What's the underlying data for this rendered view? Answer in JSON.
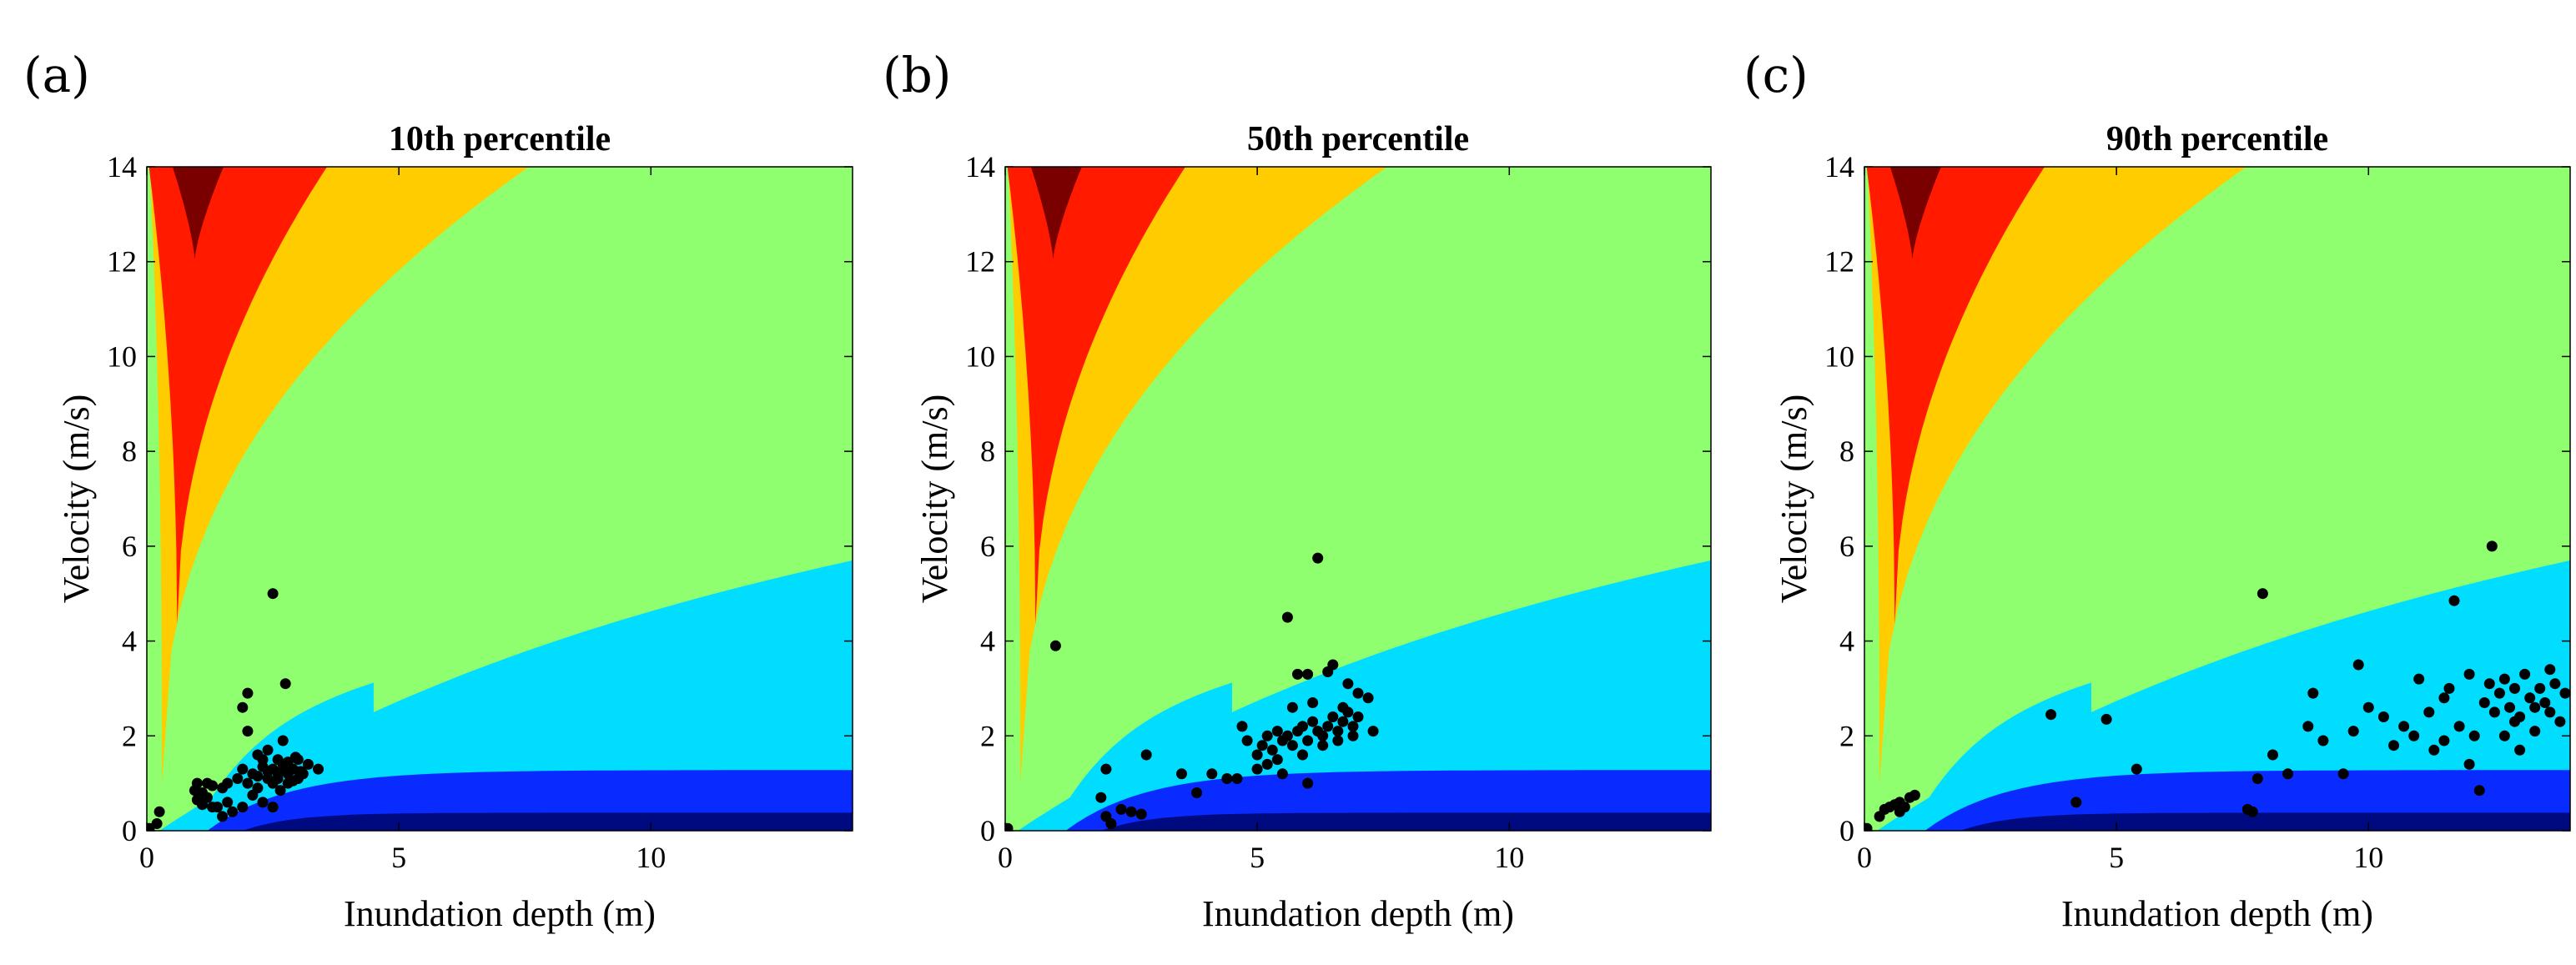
{
  "figure": {
    "panel_labels": [
      "(a)",
      "(b)",
      "(c)"
    ]
  },
  "zone_colors": {
    "dark_red": "#7A0000",
    "red": "#FF1A00",
    "orange": "#FFCC00",
    "green": "#8FFF6F",
    "light_blue": "#00DDFF",
    "blue": "#0A2BFF",
    "navy": "#000A80"
  },
  "chart_data": [
    {
      "type": "scatter",
      "panel": "(a)",
      "title": "10th percentile",
      "xlabel": "Inundation depth (m)",
      "ylabel": "Velocity (m/s)",
      "xlim": [
        0,
        14
      ],
      "ylim": [
        0,
        14
      ],
      "xticks": [
        0,
        5,
        10
      ],
      "yticks": [
        0,
        2,
        4,
        6,
        8,
        10,
        12,
        14
      ],
      "background": "hazard zone contours (depth-velocity)",
      "points": [
        [
          0.05,
          0.05
        ],
        [
          0.25,
          0.4
        ],
        [
          0.2,
          0.15
        ],
        [
          2.5,
          5.0
        ],
        [
          1.0,
          1.0
        ],
        [
          1.1,
          0.8
        ],
        [
          1.2,
          0.7
        ],
        [
          1.3,
          0.95
        ],
        [
          1.4,
          0.5
        ],
        [
          1.5,
          0.9
        ],
        [
          1.6,
          0.6
        ],
        [
          1.7,
          0.4
        ],
        [
          1.5,
          0.3
        ],
        [
          1.3,
          0.5
        ],
        [
          1.2,
          1.0
        ],
        [
          1.1,
          0.55
        ],
        [
          1.0,
          0.65
        ],
        [
          0.95,
          0.85
        ],
        [
          1.8,
          1.1
        ],
        [
          1.9,
          1.3
        ],
        [
          2.0,
          1.0
        ],
        [
          2.1,
          1.2
        ],
        [
          2.2,
          0.9
        ],
        [
          2.3,
          1.5
        ],
        [
          2.4,
          1.1
        ],
        [
          2.5,
          1.3
        ],
        [
          2.6,
          1.2
        ],
        [
          2.7,
          1.4
        ],
        [
          2.8,
          1.0
        ],
        [
          2.9,
          1.3
        ],
        [
          3.0,
          1.5
        ],
        [
          3.1,
          1.2
        ],
        [
          3.2,
          1.4
        ],
        [
          3.4,
          1.3
        ],
        [
          2.0,
          2.9
        ],
        [
          1.9,
          2.6
        ],
        [
          2.0,
          2.1
        ],
        [
          2.75,
          3.1
        ],
        [
          2.7,
          1.9
        ],
        [
          2.4,
          1.7
        ],
        [
          2.2,
          1.6
        ],
        [
          2.5,
          1.0
        ],
        [
          2.6,
          1.1
        ],
        [
          2.8,
          1.2
        ],
        [
          2.9,
          1.05
        ],
        [
          3.0,
          1.1
        ],
        [
          2.3,
          0.6
        ],
        [
          2.1,
          0.75
        ],
        [
          2.5,
          0.5
        ],
        [
          1.9,
          0.5
        ],
        [
          2.6,
          1.5
        ],
        [
          2.7,
          1.3
        ],
        [
          2.3,
          1.35
        ],
        [
          2.4,
          1.25
        ],
        [
          2.2,
          1.15
        ],
        [
          2.8,
          1.45
        ],
        [
          2.95,
          1.55
        ],
        [
          3.05,
          1.25
        ],
        [
          2.65,
          0.85
        ],
        [
          1.6,
          1.0
        ]
      ]
    },
    {
      "type": "scatter",
      "panel": "(b)",
      "title": "50th percentile",
      "xlabel": "Inundation depth (m)",
      "ylabel": "Velocity (m/s)",
      "xlim": [
        0,
        14
      ],
      "ylim": [
        0,
        14
      ],
      "xticks": [
        0,
        5,
        10
      ],
      "yticks": [
        0,
        2,
        4,
        6,
        8,
        10,
        12,
        14
      ],
      "background": "hazard zone contours (depth-velocity)",
      "points": [
        [
          0.05,
          0.05
        ],
        [
          1.0,
          3.9
        ],
        [
          2.0,
          1.3
        ],
        [
          1.9,
          0.7
        ],
        [
          2.0,
          0.3
        ],
        [
          2.1,
          0.15
        ],
        [
          2.5,
          0.4
        ],
        [
          2.8,
          1.6
        ],
        [
          2.3,
          0.45
        ],
        [
          2.7,
          0.35
        ],
        [
          3.5,
          1.2
        ],
        [
          3.8,
          0.8
        ],
        [
          4.1,
          1.2
        ],
        [
          4.4,
          1.1
        ],
        [
          4.6,
          1.1
        ],
        [
          4.7,
          2.2
        ],
        [
          4.8,
          1.9
        ],
        [
          5.0,
          1.3
        ],
        [
          5.0,
          1.6
        ],
        [
          5.1,
          1.8
        ],
        [
          5.2,
          1.4
        ],
        [
          5.3,
          1.7
        ],
        [
          5.4,
          1.5
        ],
        [
          5.5,
          1.2
        ],
        [
          5.5,
          1.9
        ],
        [
          5.6,
          2.0
        ],
        [
          5.7,
          1.8
        ],
        [
          5.8,
          2.1
        ],
        [
          5.9,
          2.2
        ],
        [
          6.0,
          1.9
        ],
        [
          6.1,
          2.3
        ],
        [
          6.2,
          2.1
        ],
        [
          6.3,
          2.0
        ],
        [
          6.4,
          2.2
        ],
        [
          6.5,
          2.4
        ],
        [
          6.6,
          2.1
        ],
        [
          6.7,
          2.3
        ],
        [
          6.8,
          2.5
        ],
        [
          6.9,
          2.2
        ],
        [
          7.0,
          2.4
        ],
        [
          7.2,
          2.8
        ],
        [
          7.3,
          2.1
        ],
        [
          6.2,
          5.75
        ],
        [
          5.6,
          4.5
        ],
        [
          5.8,
          3.3
        ],
        [
          6.0,
          3.3
        ],
        [
          6.5,
          3.5
        ],
        [
          6.4,
          3.35
        ],
        [
          6.8,
          3.1
        ],
        [
          6.0,
          1.0
        ],
        [
          5.2,
          2.0
        ],
        [
          5.7,
          2.6
        ],
        [
          6.1,
          2.7
        ],
        [
          6.3,
          1.8
        ],
        [
          6.6,
          1.9
        ],
        [
          6.9,
          2.0
        ],
        [
          7.0,
          2.9
        ],
        [
          6.7,
          2.6
        ],
        [
          5.4,
          2.1
        ],
        [
          5.9,
          1.6
        ]
      ]
    },
    {
      "type": "scatter",
      "panel": "(c)",
      "title": "90th percentile",
      "xlabel": "Inundation depth (m)",
      "ylabel": "Velocity (m/s)",
      "xlim": [
        0,
        14
      ],
      "ylim": [
        0,
        14
      ],
      "xticks": [
        0,
        5,
        10
      ],
      "yticks": [
        0,
        2,
        4,
        6,
        8,
        10,
        12,
        14
      ],
      "background": "hazard zone contours (depth-velocity)",
      "points": [
        [
          0.05,
          0.05
        ],
        [
          0.3,
          0.3
        ],
        [
          0.4,
          0.45
        ],
        [
          0.5,
          0.5
        ],
        [
          0.6,
          0.55
        ],
        [
          0.7,
          0.6
        ],
        [
          0.8,
          0.5
        ],
        [
          0.9,
          0.7
        ],
        [
          1.0,
          0.75
        ],
        [
          0.7,
          0.4
        ],
        [
          3.7,
          2.45
        ],
        [
          4.2,
          0.6
        ],
        [
          4.8,
          2.35
        ],
        [
          5.4,
          1.3
        ],
        [
          7.6,
          0.45
        ],
        [
          7.7,
          0.4
        ],
        [
          7.9,
          5.0
        ],
        [
          7.8,
          1.1
        ],
        [
          8.1,
          1.6
        ],
        [
          8.4,
          1.2
        ],
        [
          8.8,
          2.2
        ],
        [
          8.9,
          2.9
        ],
        [
          9.1,
          1.9
        ],
        [
          9.5,
          1.2
        ],
        [
          9.7,
          2.1
        ],
        [
          9.8,
          3.5
        ],
        [
          10.0,
          2.6
        ],
        [
          10.3,
          2.4
        ],
        [
          10.5,
          1.8
        ],
        [
          10.7,
          2.2
        ],
        [
          10.9,
          2.0
        ],
        [
          11.0,
          3.2
        ],
        [
          11.2,
          2.5
        ],
        [
          11.3,
          1.7
        ],
        [
          11.5,
          2.8
        ],
        [
          11.6,
          3.0
        ],
        [
          11.7,
          4.85
        ],
        [
          11.8,
          2.2
        ],
        [
          12.0,
          3.3
        ],
        [
          12.1,
          2.0
        ],
        [
          12.2,
          0.85
        ],
        [
          12.3,
          2.7
        ],
        [
          12.4,
          3.1
        ],
        [
          12.45,
          6.0
        ],
        [
          12.5,
          2.5
        ],
        [
          12.6,
          2.9
        ],
        [
          12.7,
          3.2
        ],
        [
          12.8,
          2.6
        ],
        [
          12.9,
          3.0
        ],
        [
          13.0,
          2.4
        ],
        [
          13.1,
          3.3
        ],
        [
          13.2,
          2.8
        ],
        [
          13.3,
          2.1
        ],
        [
          13.4,
          3.0
        ],
        [
          13.5,
          2.7
        ],
        [
          13.6,
          2.5
        ],
        [
          13.7,
          3.1
        ],
        [
          13.8,
          2.3
        ],
        [
          13.9,
          2.9
        ],
        [
          13.0,
          1.7
        ],
        [
          12.0,
          1.4
        ],
        [
          11.5,
          1.9
        ],
        [
          12.7,
          2.0
        ],
        [
          13.3,
          2.6
        ],
        [
          12.9,
          2.3
        ],
        [
          13.6,
          3.4
        ]
      ]
    }
  ]
}
